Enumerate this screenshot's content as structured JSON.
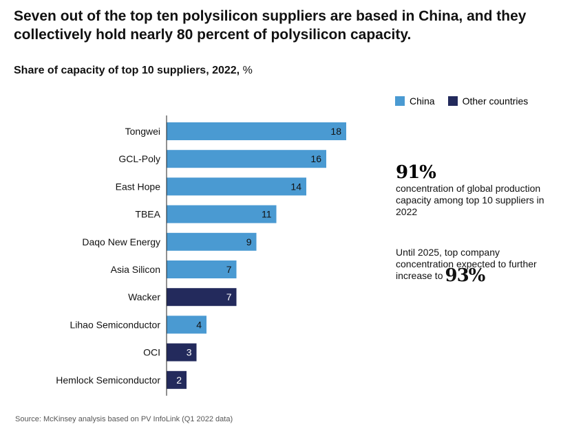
{
  "headline": "Seven out of the top ten polysilicon suppliers are based in China, and they collectively hold nearly 80 percent of polysilicon capacity.",
  "subtitle": {
    "main": "Share of capacity of top 10 suppliers, 2022,",
    "unit": "%"
  },
  "legend": [
    {
      "label": "China",
      "color": "#4a9ad2"
    },
    {
      "label": "Other countries",
      "color": "#232a5c"
    }
  ],
  "callout_1": {
    "stat": "91%",
    "text": "concentration of global production capacity among top 10 suppliers in 2022"
  },
  "callout_2": {
    "text": "Until 2025, top company concentration expected to further increase to",
    "stat": "93%"
  },
  "source": "Source: McKinsey analysis based on PV InfoLink (Q1 2022 data)",
  "chart_data": {
    "type": "bar",
    "orientation": "horizontal",
    "categories": [
      "Tongwei",
      "GCL-Poly",
      "East Hope",
      "TBEA",
      "Daqo New Energy",
      "Asia Silicon",
      "Wacker",
      "Lihao Semiconductor",
      "OCI",
      "Hemlock Semiconductor"
    ],
    "values": [
      18,
      16,
      14,
      11,
      9,
      7,
      7,
      4,
      3,
      2
    ],
    "country_group": [
      "China",
      "China",
      "China",
      "China",
      "China",
      "China",
      "Other countries",
      "China",
      "Other countries",
      "Other countries"
    ],
    "colors": {
      "China": "#4a9ad2",
      "Other countries": "#232a5c"
    },
    "unit": "%",
    "xlim": [
      0,
      18
    ],
    "grid": false,
    "legend_position": "top-right"
  }
}
